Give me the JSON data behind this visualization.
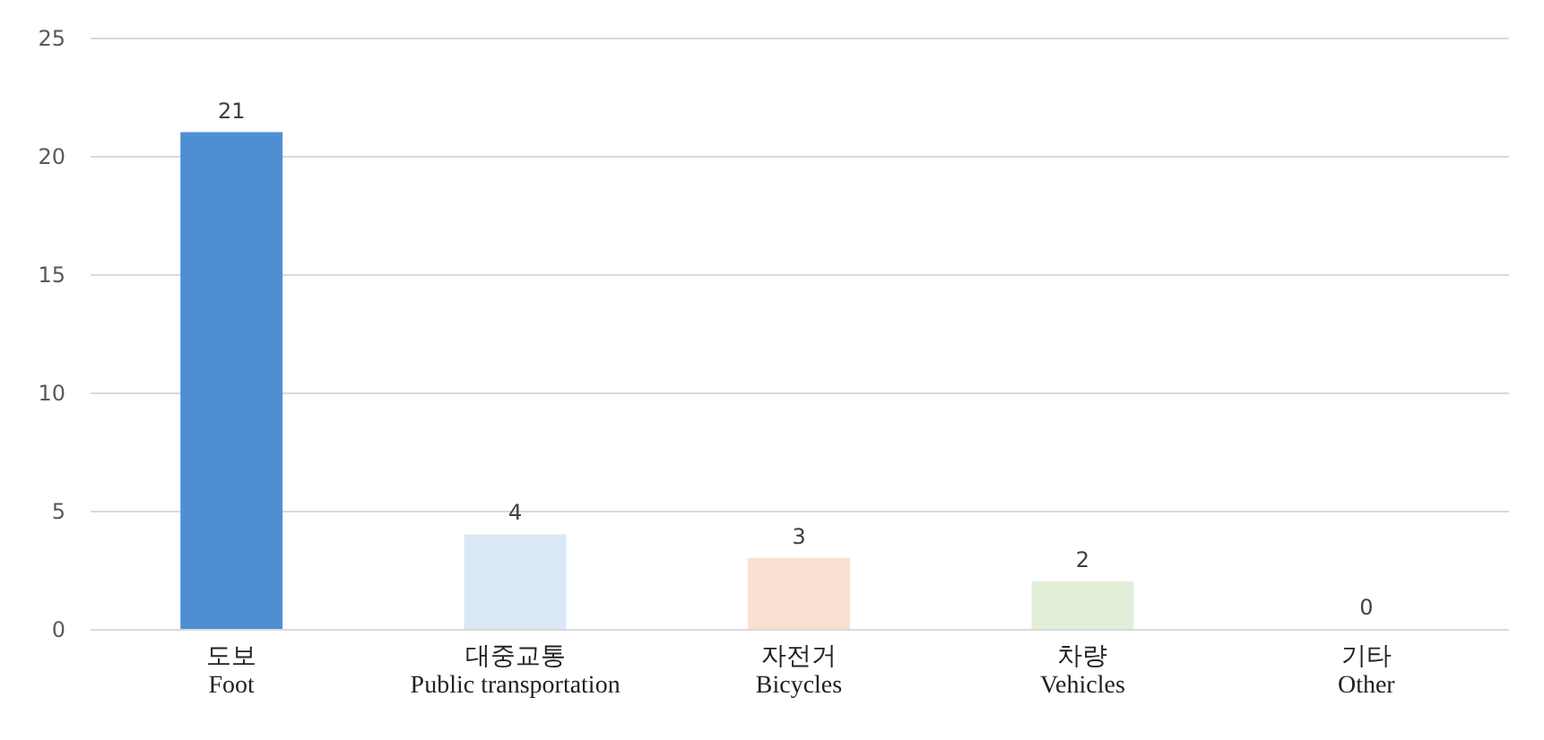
{
  "chart_data": {
    "type": "bar",
    "categories": [
      "도보\n\nFoot",
      "대중교통\n\nPublic transportation",
      "자전거\n\nBicycles",
      "차량\n\nVehicles",
      "기타\n\nOther"
    ],
    "values": [
      21,
      4,
      3,
      2,
      0
    ],
    "colors": [
      "#4e8fd3",
      "#dae8f6",
      "#fae0d1",
      "#e1efd9",
      "#eeeeee"
    ],
    "ylim": [
      0,
      25
    ],
    "yticks": [
      0,
      5,
      10,
      15,
      20,
      25
    ],
    "grid": "y",
    "data_labels": true
  }
}
